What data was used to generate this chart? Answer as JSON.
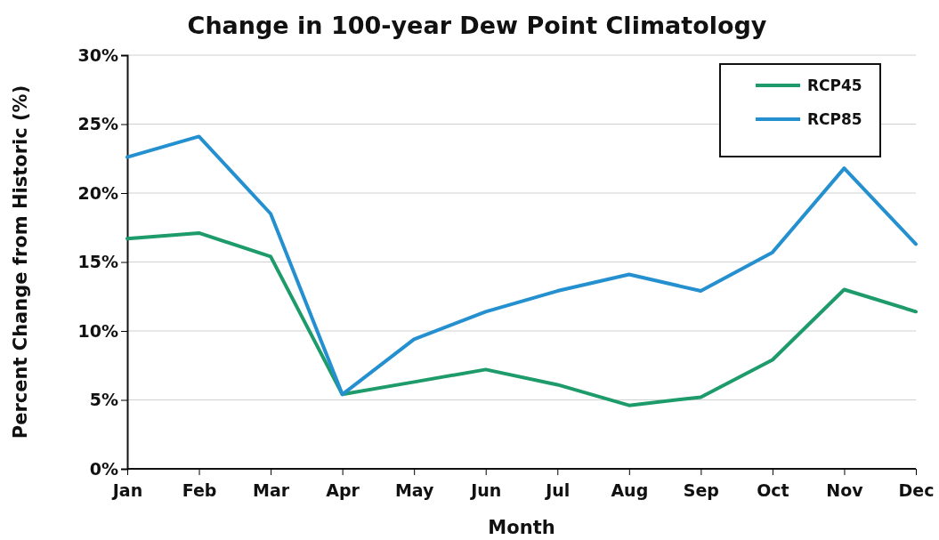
{
  "chart_data": {
    "type": "line",
    "title": "Change in 100-year Dew Point Climatology",
    "xlabel": "Month",
    "ylabel": "Percent Change from Historic (%)",
    "categories": [
      "Jan",
      "Feb",
      "Mar",
      "Apr",
      "May",
      "Jun",
      "Jul",
      "Aug",
      "Sep",
      "Oct",
      "Nov",
      "Dec"
    ],
    "series": [
      {
        "name": "RCP45",
        "color": "#1e9b6b",
        "values": [
          16.7,
          17.1,
          15.4,
          5.4,
          6.3,
          7.2,
          6.1,
          4.6,
          5.2,
          7.9,
          13.0,
          11.4
        ]
      },
      {
        "name": "RCP85",
        "color": "#2490d0",
        "values": [
          22.6,
          24.1,
          18.5,
          5.4,
          9.4,
          11.4,
          12.9,
          14.1,
          12.9,
          15.7,
          21.8,
          16.3
        ]
      }
    ],
    "ylim": [
      0,
      30
    ],
    "yticks": [
      {
        "value": 0,
        "label": "0%"
      },
      {
        "value": 5,
        "label": "5%"
      },
      {
        "value": 10,
        "label": "10%"
      },
      {
        "value": 15,
        "label": "15%"
      },
      {
        "value": 20,
        "label": "20%"
      },
      {
        "value": 25,
        "label": "25%"
      },
      {
        "value": 30,
        "label": "30%"
      }
    ],
    "grid": "y",
    "legend": "top right",
    "marker": "none",
    "line_style": "solid"
  }
}
